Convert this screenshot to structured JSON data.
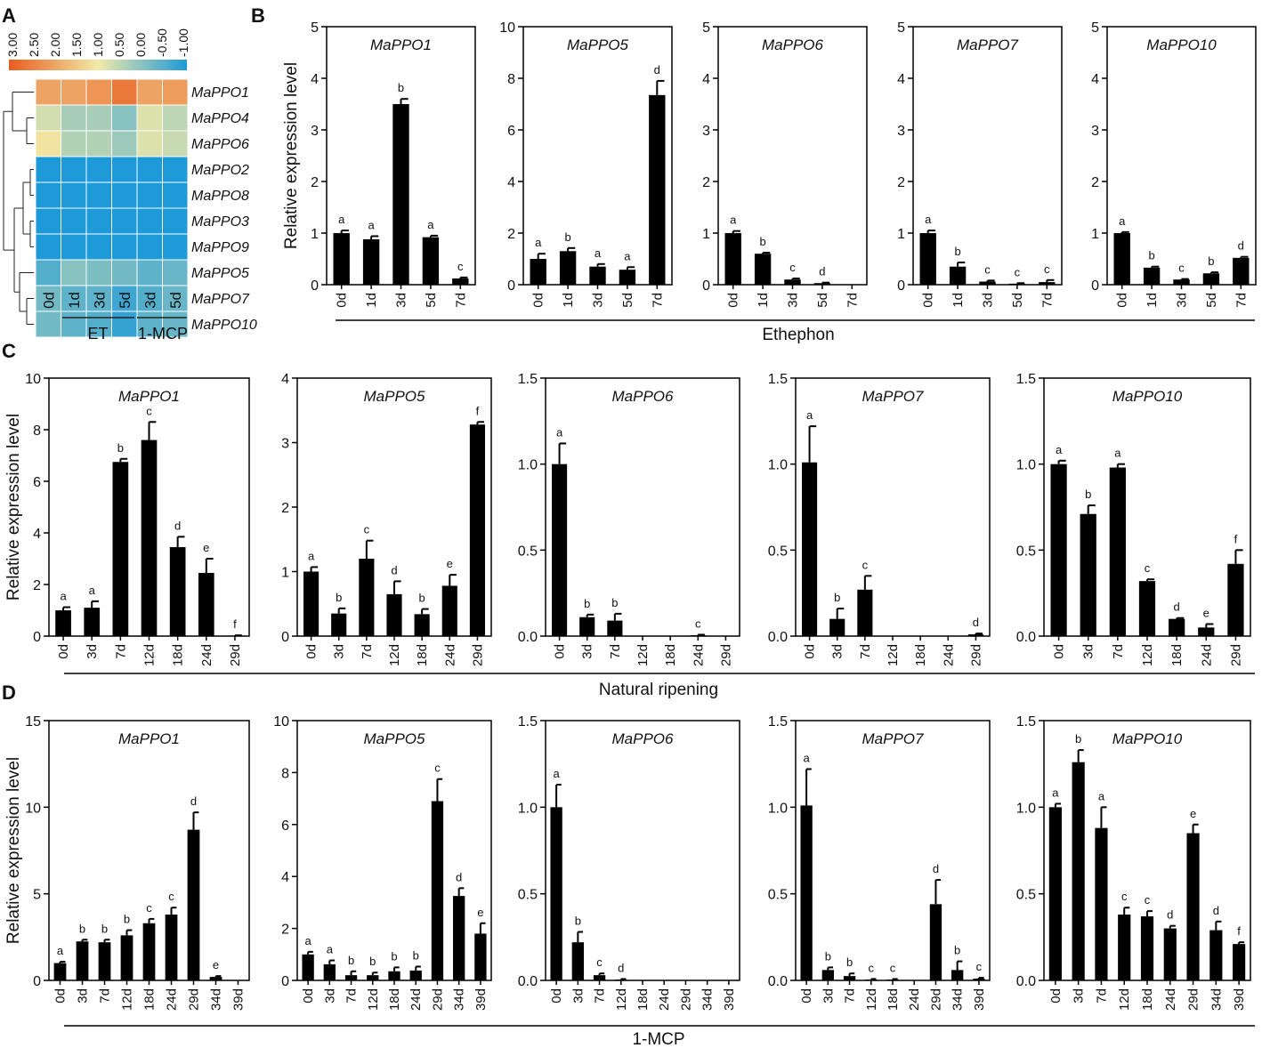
{
  "panel_letters": {
    "A": "A",
    "B": "B",
    "C": "C",
    "D": "D"
  },
  "colors": {
    "bar": "#000000",
    "hm_low": "#1e9ad8",
    "hm_mid": "#f2eaa8",
    "hm_high": "#e85c1e"
  },
  "heatmap": {
    "colorbar_labels": [
      "3.00",
      "2.50",
      "2.00",
      "1.50",
      "1.00",
      "0.50",
      "0.00",
      "-0.50",
      "-1.00"
    ],
    "genes": [
      "MaPPO1",
      "MaPPO4",
      "MaPPO6",
      "MaPPO2",
      "MaPPO8",
      "MaPPO3",
      "MaPPO9",
      "MaPPO5",
      "MaPPO7",
      "MaPPO10"
    ],
    "columns": [
      "0d",
      "1d",
      "3d",
      "5d",
      "3d",
      "5d"
    ],
    "group_labels": [
      "ET",
      "1-MCP"
    ],
    "values": [
      [
        2.0,
        2.0,
        2.2,
        2.6,
        2.0,
        2.1
      ],
      [
        0.7,
        0.3,
        0.3,
        0.0,
        0.8,
        0.5
      ],
      [
        1.1,
        0.4,
        0.4,
        0.2,
        0.8,
        0.6
      ],
      [
        -1.0,
        -1.0,
        -1.0,
        -1.0,
        -1.0,
        -1.0
      ],
      [
        -1.0,
        -1.0,
        -1.0,
        -1.0,
        -1.0,
        -1.0
      ],
      [
        -1.0,
        -1.0,
        -1.0,
        -1.0,
        -1.0,
        -1.0
      ],
      [
        -1.0,
        -1.0,
        -1.0,
        -1.0,
        -1.0,
        -1.0
      ],
      [
        -0.5,
        0.0,
        -0.1,
        -0.2,
        -0.4,
        -0.3
      ],
      [
        -0.2,
        -0.4,
        -0.4,
        -0.7,
        -0.5,
        -0.3
      ],
      [
        -0.2,
        -0.4,
        -0.5,
        -0.8,
        -0.4,
        -0.3
      ]
    ]
  },
  "chart_data": [
    {
      "type": "bar",
      "row": "B",
      "title": "MaPPO1",
      "ylabel": "Relative expression level",
      "ylim": [
        0,
        5
      ],
      "yticks": [
        "0",
        "1",
        "2",
        "3",
        "4",
        "5"
      ],
      "categories": [
        "0d",
        "1d",
        "3d",
        "5d",
        "7d"
      ],
      "values": [
        1.0,
        0.88,
        3.5,
        0.92,
        0.12
      ],
      "errors": [
        0.05,
        0.06,
        0.1,
        0.03,
        0.02
      ],
      "letters": [
        "a",
        "a",
        "b",
        "a",
        "c"
      ]
    },
    {
      "type": "bar",
      "row": "B",
      "title": "MaPPO5",
      "ylim": [
        0,
        10
      ],
      "yticks": [
        "0",
        "2",
        "4",
        "6",
        "8",
        "10"
      ],
      "categories": [
        "0d",
        "1d",
        "3d",
        "5d",
        "7d"
      ],
      "values": [
        1.0,
        1.3,
        0.7,
        0.58,
        7.35
      ],
      "errors": [
        0.2,
        0.12,
        0.1,
        0.1,
        0.55
      ],
      "letters": [
        "a",
        "b",
        "a",
        "a",
        "d"
      ]
    },
    {
      "type": "bar",
      "row": "B",
      "title": "MaPPO6",
      "ylim": [
        0,
        5
      ],
      "yticks": [
        "0",
        "1",
        "2",
        "3",
        "4",
        "5"
      ],
      "categories": [
        "0d",
        "1d",
        "3d",
        "5d",
        "7d"
      ],
      "values": [
        1.0,
        0.6,
        0.1,
        0.03,
        0.0
      ],
      "errors": [
        0.04,
        0.02,
        0.02,
        0.01,
        0.0
      ],
      "letters": [
        "a",
        "b",
        "c",
        "d",
        ""
      ]
    },
    {
      "type": "bar",
      "row": "B",
      "title": "MaPPO7",
      "ylim": [
        0,
        5
      ],
      "yticks": [
        "0",
        "1",
        "2",
        "3",
        "4",
        "5"
      ],
      "categories": [
        "0d",
        "1d",
        "3d",
        "5d",
        "7d"
      ],
      "values": [
        1.0,
        0.35,
        0.06,
        0.02,
        0.05
      ],
      "errors": [
        0.05,
        0.08,
        0.02,
        0.01,
        0.04
      ],
      "letters": [
        "a",
        "b",
        "c",
        "c",
        "c"
      ]
    },
    {
      "type": "bar",
      "row": "B",
      "title": "MaPPO10",
      "ylim": [
        0,
        5
      ],
      "yticks": [
        "0",
        "1",
        "2",
        "3",
        "4",
        "5"
      ],
      "categories": [
        "0d",
        "1d",
        "3d",
        "5d",
        "7d"
      ],
      "values": [
        1.0,
        0.33,
        0.1,
        0.22,
        0.52
      ],
      "errors": [
        0.02,
        0.02,
        0.01,
        0.02,
        0.02
      ],
      "letters": [
        "a",
        "b",
        "c",
        "b",
        "d"
      ]
    },
    {
      "type": "bar",
      "row": "C",
      "title": "MaPPO1",
      "ylabel": "Relative expression level",
      "ylim": [
        0,
        10
      ],
      "yticks": [
        "0",
        "2",
        "4",
        "6",
        "8",
        "10"
      ],
      "categories": [
        "0d",
        "3d",
        "7d",
        "12d",
        "18d",
        "24d",
        "29d"
      ],
      "values": [
        1.0,
        1.1,
        6.75,
        7.6,
        3.45,
        2.45,
        0.02
      ],
      "errors": [
        0.12,
        0.25,
        0.12,
        0.7,
        0.4,
        0.55,
        0.01
      ],
      "letters": [
        "a",
        "a",
        "b",
        "c",
        "d",
        "e",
        "f"
      ]
    },
    {
      "type": "bar",
      "row": "C",
      "title": "MaPPO5",
      "ylim": [
        0,
        4
      ],
      "yticks": [
        "0",
        "1",
        "2",
        "3",
        "4"
      ],
      "categories": [
        "0d",
        "3d",
        "7d",
        "12d",
        "18d",
        "24d",
        "29d"
      ],
      "values": [
        1.0,
        0.35,
        1.2,
        0.65,
        0.34,
        0.78,
        3.28
      ],
      "errors": [
        0.07,
        0.08,
        0.28,
        0.2,
        0.08,
        0.17,
        0.04
      ],
      "letters": [
        "a",
        "b",
        "c",
        "d",
        "b",
        "e",
        "f"
      ]
    },
    {
      "type": "bar",
      "row": "C",
      "title": "MaPPO6",
      "ylim": [
        0,
        1.5
      ],
      "yticks": [
        "0.0",
        "0.5",
        "1.0",
        "1.5"
      ],
      "categories": [
        "0d",
        "3d",
        "7d",
        "12d",
        "18d",
        "24d",
        "29d"
      ],
      "values": [
        1.0,
        0.11,
        0.09,
        0.0,
        0.0,
        0.005,
        0.0
      ],
      "errors": [
        0.12,
        0.015,
        0.04,
        0.0,
        0.0,
        0.003,
        0.0
      ],
      "letters": [
        "a",
        "b",
        "b",
        "",
        "",
        "c",
        ""
      ]
    },
    {
      "type": "bar",
      "row": "C",
      "title": "MaPPO7",
      "ylim": [
        0,
        1.5
      ],
      "yticks": [
        "0.0",
        "0.5",
        "1.0",
        "1.5"
      ],
      "categories": [
        "0d",
        "3d",
        "7d",
        "12d",
        "18d",
        "24d",
        "29d"
      ],
      "values": [
        1.01,
        0.1,
        0.27,
        0.0,
        0.0,
        0.0,
        0.01
      ],
      "errors": [
        0.21,
        0.06,
        0.08,
        0.0,
        0.0,
        0.0,
        0.005
      ],
      "letters": [
        "a",
        "b",
        "c",
        "",
        "",
        "",
        "d"
      ]
    },
    {
      "type": "bar",
      "row": "C",
      "title": "MaPPO10",
      "ylim": [
        0,
        1.5
      ],
      "yticks": [
        "0.0",
        "0.5",
        "1.0",
        "1.5"
      ],
      "categories": [
        "0d",
        "3d",
        "7d",
        "12d",
        "18d",
        "24d",
        "29d"
      ],
      "values": [
        1.0,
        0.71,
        0.98,
        0.32,
        0.1,
        0.05,
        0.42
      ],
      "errors": [
        0.02,
        0.05,
        0.02,
        0.01,
        0.005,
        0.02,
        0.08
      ],
      "letters": [
        "a",
        "b",
        "a",
        "c",
        "d",
        "e",
        "f"
      ]
    },
    {
      "type": "bar",
      "row": "D",
      "title": "MaPPO1",
      "ylabel": "Relative expression level",
      "ylim": [
        0,
        15
      ],
      "yticks": [
        "0",
        "5",
        "10",
        "15"
      ],
      "categories": [
        "0d",
        "3d",
        "7d",
        "12d",
        "18d",
        "24d",
        "29d",
        "34d",
        "39d"
      ],
      "values": [
        1.0,
        2.25,
        2.2,
        2.6,
        3.3,
        3.8,
        8.7,
        0.2,
        0.0
      ],
      "errors": [
        0.08,
        0.1,
        0.15,
        0.3,
        0.25,
        0.4,
        1.0,
        0.05,
        0.0
      ],
      "letters": [
        "a",
        "b",
        "b",
        "b",
        "c",
        "c",
        "d",
        "e",
        ""
      ]
    },
    {
      "type": "bar",
      "row": "D",
      "title": "MaPPO5",
      "ylim": [
        0,
        10
      ],
      "yticks": [
        "0",
        "2",
        "4",
        "6",
        "8",
        "10"
      ],
      "categories": [
        "0d",
        "3d",
        "7d",
        "12d",
        "18d",
        "24d",
        "29d",
        "34d",
        "39d"
      ],
      "values": [
        1.0,
        0.62,
        0.2,
        0.2,
        0.35,
        0.38,
        6.9,
        3.25,
        1.8
      ],
      "errors": [
        0.1,
        0.15,
        0.15,
        0.1,
        0.15,
        0.15,
        0.85,
        0.3,
        0.4
      ],
      "letters": [
        "a",
        "a",
        "b",
        "b",
        "b",
        "b",
        "c",
        "d",
        "e"
      ]
    },
    {
      "type": "bar",
      "row": "D",
      "title": "MaPPO6",
      "ylim": [
        0,
        1.5
      ],
      "yticks": [
        "0.0",
        "0.5",
        "1.0",
        "1.5"
      ],
      "categories": [
        "0d",
        "3d",
        "7d",
        "12d",
        "18d",
        "24d",
        "29d",
        "34d",
        "39d"
      ],
      "values": [
        1.0,
        0.22,
        0.03,
        0.005,
        0.0,
        0.0,
        0.0,
        0.0,
        0.0
      ],
      "errors": [
        0.13,
        0.06,
        0.01,
        0.003,
        0.0,
        0.0,
        0.0,
        0.0,
        0.0
      ],
      "letters": [
        "a",
        "b",
        "c",
        "d",
        "",
        "",
        "",
        "",
        ""
      ]
    },
    {
      "type": "bar",
      "row": "D",
      "title": "MaPPO7",
      "ylim": [
        0,
        1.5
      ],
      "yticks": [
        "0.0",
        "0.5",
        "1.0",
        "1.5"
      ],
      "categories": [
        "0d",
        "3d",
        "7d",
        "12d",
        "18d",
        "24d",
        "29d",
        "34d",
        "39d"
      ],
      "values": [
        1.01,
        0.06,
        0.025,
        0.005,
        0.005,
        0.0,
        0.44,
        0.06,
        0.01
      ],
      "errors": [
        0.21,
        0.015,
        0.015,
        0.003,
        0.003,
        0.0,
        0.14,
        0.05,
        0.005
      ],
      "letters": [
        "a",
        "b",
        "b",
        "c",
        "c",
        "",
        "d",
        "b",
        "c"
      ]
    },
    {
      "type": "bar",
      "row": "D",
      "title": "MaPPO10",
      "ylim": [
        0,
        1.5
      ],
      "yticks": [
        "0.0",
        "0.5",
        "1.0",
        "1.5"
      ],
      "categories": [
        "0d",
        "3d",
        "7d",
        "12d",
        "18d",
        "24d",
        "29d",
        "34d",
        "39d"
      ],
      "values": [
        1.0,
        1.26,
        0.88,
        0.38,
        0.37,
        0.3,
        0.85,
        0.29,
        0.21
      ],
      "errors": [
        0.02,
        0.07,
        0.12,
        0.04,
        0.03,
        0.015,
        0.05,
        0.05,
        0.01
      ],
      "letters": [
        "a",
        "b",
        "a",
        "c",
        "c",
        "d",
        "e",
        "d",
        "f"
      ]
    }
  ],
  "group_labels": {
    "B": "Ethephon",
    "C": "Natural ripening",
    "D": "1-MCP"
  }
}
